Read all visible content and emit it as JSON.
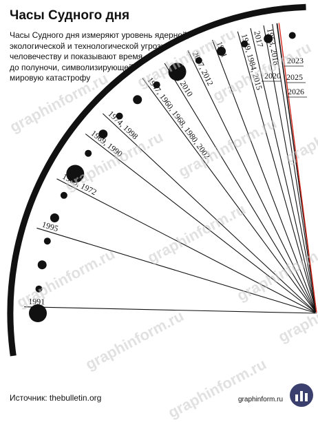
{
  "title": "Часы Судного дня",
  "subtitle_lines": [
    "Часы Судного дня измеряют уровень ядерной,",
    "экологической и технологической угрозы",
    "человечеству и показывают время",
    "до полуночи, символизирующей",
    "мировую катастрофу"
  ],
  "source": "Источник: thebulletin.org",
  "site": "graphinform.ru",
  "watermark": "graphinform.ru",
  "colors": {
    "ink": "#111111",
    "highlight": "#d62a1e",
    "watermark": "#c9c9c9"
  },
  "chart_data": {
    "type": "radial-clock",
    "unit": "seconds to midnight",
    "points": [
      {
        "label": "1991",
        "seconds": 1020
      },
      {
        "label": "1995",
        "seconds": 840
      },
      {
        "label": "1963, 1972",
        "seconds": 720
      },
      {
        "label": "1969, 1990",
        "seconds": 600
      },
      {
        "label": "1974, 1998",
        "seconds": 540
      },
      {
        "label": "1947, 1960, 1968, 1980, 2002",
        "seconds": 420
      },
      {
        "label": "1988, 2010",
        "seconds": 360
      },
      {
        "label": "2007, 2012",
        "seconds": 300
      },
      {
        "label": "1981",
        "seconds": 240
      },
      {
        "label": "1949, 1984, 2015",
        "seconds": 180
      },
      {
        "label": "2017",
        "seconds": 150
      },
      {
        "label": "1953, 2018",
        "seconds": 120
      },
      {
        "label": "2020",
        "seconds": 100
      },
      {
        "label": "2023",
        "seconds": 90
      },
      {
        "label": "2025",
        "seconds": 89
      },
      {
        "label": "2026",
        "seconds": 85,
        "highlight": true
      }
    ]
  }
}
